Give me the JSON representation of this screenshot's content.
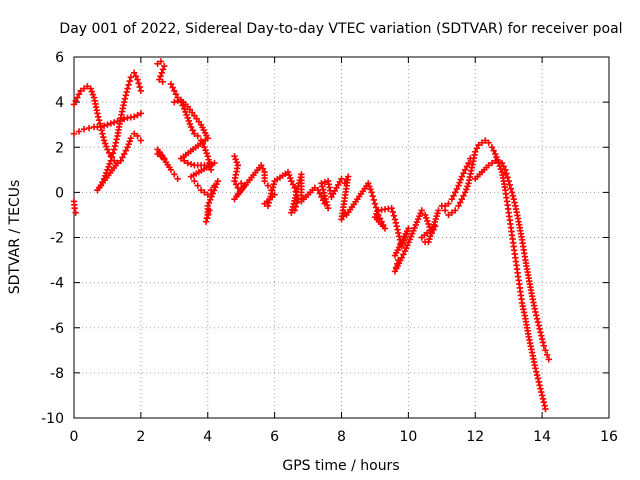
{
  "chart_data": {
    "type": "scatter",
    "title": "Day 001 of 2022, Sidereal Day-to-day VTEC variation (SDTVAR) for receiver poal",
    "xlabel": "GPS time / hours",
    "ylabel": "SDTVAR / TECUs",
    "xlim": [
      0,
      16
    ],
    "ylim": [
      -10,
      6
    ],
    "xticks": [
      0,
      2,
      4,
      6,
      8,
      10,
      12,
      14,
      16
    ],
    "yticks": [
      -10,
      -8,
      -6,
      -4,
      -2,
      0,
      2,
      4,
      6
    ],
    "grid": true,
    "marker": "+",
    "color": "#ff0000",
    "series": [
      {
        "name": "SDTVAR",
        "points": [
          [
            0.0,
            -0.4
          ],
          [
            0.02,
            -0.7
          ],
          [
            0.05,
            -0.9
          ],
          [
            0.0,
            2.6
          ],
          [
            0.15,
            2.7
          ],
          [
            0.3,
            2.8
          ],
          [
            0.45,
            2.85
          ],
          [
            0.6,
            2.9
          ],
          [
            0.8,
            2.9
          ],
          [
            1.0,
            3.0
          ],
          [
            1.2,
            3.1
          ],
          [
            1.4,
            3.2
          ],
          [
            1.6,
            3.3
          ],
          [
            1.8,
            3.35
          ],
          [
            2.0,
            3.5
          ],
          [
            0.0,
            3.9
          ],
          [
            0.1,
            4.2
          ],
          [
            0.2,
            4.5
          ],
          [
            0.3,
            4.6
          ],
          [
            0.4,
            4.7
          ],
          [
            0.5,
            4.6
          ],
          [
            0.6,
            4.2
          ],
          [
            0.7,
            3.5
          ],
          [
            0.8,
            2.9
          ],
          [
            0.9,
            2.3
          ],
          [
            1.0,
            1.9
          ],
          [
            1.1,
            1.6
          ],
          [
            1.2,
            1.4
          ],
          [
            1.3,
            1.3
          ],
          [
            0.7,
            0.1
          ],
          [
            0.8,
            0.3
          ],
          [
            0.9,
            0.6
          ],
          [
            1.0,
            1.0
          ],
          [
            1.1,
            1.4
          ],
          [
            1.2,
            1.9
          ],
          [
            1.3,
            2.5
          ],
          [
            1.4,
            3.3
          ],
          [
            1.5,
            4.0
          ],
          [
            1.6,
            4.6
          ],
          [
            1.7,
            5.1
          ],
          [
            1.8,
            5.3
          ],
          [
            1.9,
            5.0
          ],
          [
            2.0,
            4.5
          ],
          [
            1.3,
            1.3
          ],
          [
            1.4,
            1.4
          ],
          [
            1.5,
            1.7
          ],
          [
            1.6,
            2.0
          ],
          [
            1.7,
            2.4
          ],
          [
            1.8,
            2.6
          ],
          [
            1.9,
            2.5
          ],
          [
            2.0,
            2.3
          ],
          [
            2.5,
            5.7
          ],
          [
            2.6,
            5.8
          ],
          [
            2.7,
            5.6
          ],
          [
            2.55,
            5.0
          ],
          [
            2.65,
            4.9
          ],
          [
            2.5,
            1.7
          ],
          [
            2.6,
            1.6
          ],
          [
            2.7,
            1.5
          ],
          [
            2.5,
            1.9
          ],
          [
            2.9,
            1.0
          ],
          [
            3.0,
            0.8
          ],
          [
            3.1,
            0.6
          ],
          [
            2.9,
            4.8
          ],
          [
            3.0,
            4.5
          ],
          [
            3.1,
            4.2
          ],
          [
            3.2,
            4.0
          ],
          [
            3.3,
            3.7
          ],
          [
            3.4,
            3.3
          ],
          [
            3.5,
            2.9
          ],
          [
            3.6,
            2.6
          ],
          [
            3.7,
            2.5
          ],
          [
            3.8,
            2.3
          ],
          [
            3.9,
            2.0
          ],
          [
            4.0,
            1.6
          ],
          [
            4.05,
            1.3
          ],
          [
            4.1,
            1.0
          ],
          [
            3.0,
            4.0
          ],
          [
            3.2,
            4.1
          ],
          [
            3.4,
            3.8
          ],
          [
            3.6,
            3.4
          ],
          [
            3.8,
            3.0
          ],
          [
            4.0,
            2.4
          ],
          [
            3.2,
            1.5
          ],
          [
            3.4,
            1.3
          ],
          [
            3.6,
            1.2
          ],
          [
            3.8,
            1.2
          ],
          [
            4.0,
            1.2
          ],
          [
            4.2,
            1.3
          ],
          [
            3.5,
            0.7
          ],
          [
            3.6,
            0.5
          ],
          [
            3.7,
            0.3
          ],
          [
            3.8,
            0.1
          ],
          [
            3.9,
            0.0
          ],
          [
            4.0,
            -0.1
          ],
          [
            4.1,
            0.1
          ],
          [
            4.2,
            0.3
          ],
          [
            4.3,
            0.5
          ],
          [
            4.0,
            -0.6
          ],
          [
            4.0,
            -1.0
          ],
          [
            3.95,
            -1.3
          ],
          [
            4.05,
            -0.8
          ],
          [
            4.8,
            1.6
          ],
          [
            4.9,
            1.2
          ],
          [
            4.8,
            0.5
          ],
          [
            4.9,
            0.2
          ],
          [
            5.0,
            0.4
          ],
          [
            5.1,
            0.3
          ],
          [
            4.8,
            -0.3
          ],
          [
            4.9,
            -0.1
          ],
          [
            5.6,
            1.2
          ],
          [
            5.7,
            0.9
          ],
          [
            5.7,
            0.5
          ],
          [
            5.8,
            0.3
          ],
          [
            5.9,
            0.1
          ],
          [
            6.0,
            -0.1
          ],
          [
            5.7,
            -0.5
          ],
          [
            5.8,
            -0.6
          ],
          [
            6.0,
            0.5
          ],
          [
            6.4,
            0.9
          ],
          [
            6.5,
            0.5
          ],
          [
            6.6,
            0.2
          ],
          [
            6.7,
            -0.3
          ],
          [
            6.6,
            -0.8
          ],
          [
            6.5,
            -0.9
          ],
          [
            6.8,
            0.8
          ],
          [
            6.8,
            -0.4
          ],
          [
            7.2,
            0.2
          ],
          [
            7.3,
            0.1
          ],
          [
            7.4,
            -0.2
          ],
          [
            7.5,
            -0.5
          ],
          [
            7.6,
            -0.7
          ],
          [
            7.4,
            0.4
          ],
          [
            7.6,
            0.5
          ],
          [
            7.7,
            -0.2
          ],
          [
            8.0,
            0.6
          ],
          [
            8.1,
            0.4
          ],
          [
            8.2,
            0.7
          ],
          [
            8.0,
            -1.2
          ],
          [
            8.1,
            -0.9
          ],
          [
            8.15,
            -1.0
          ],
          [
            8.8,
            0.4
          ],
          [
            8.9,
            0.0
          ],
          [
            9.0,
            -0.5
          ],
          [
            9.1,
            -1.0
          ],
          [
            9.2,
            -1.3
          ],
          [
            9.3,
            -1.6
          ],
          [
            9.0,
            -1.1
          ],
          [
            9.1,
            -0.8
          ],
          [
            9.5,
            -0.7
          ],
          [
            9.6,
            -1.2
          ],
          [
            9.7,
            -1.8
          ],
          [
            9.8,
            -2.4
          ],
          [
            9.9,
            -2.0
          ],
          [
            10.0,
            -1.6
          ],
          [
            9.6,
            -2.8
          ],
          [
            9.7,
            -3.0
          ],
          [
            9.6,
            -3.5
          ],
          [
            9.8,
            -2.9
          ],
          [
            9.9,
            -2.6
          ],
          [
            10.4,
            -0.8
          ],
          [
            10.5,
            -1.0
          ],
          [
            10.6,
            -1.4
          ],
          [
            10.7,
            -1.8
          ],
          [
            10.8,
            -1.5
          ],
          [
            10.4,
            -2.0
          ],
          [
            10.5,
            -2.2
          ],
          [
            10.6,
            -2.2
          ],
          [
            10.9,
            -0.8
          ],
          [
            11.0,
            -0.6
          ],
          [
            11.1,
            -0.6
          ],
          [
            11.2,
            -0.5
          ],
          [
            11.3,
            -0.3
          ],
          [
            11.4,
            0.0
          ],
          [
            11.5,
            0.3
          ],
          [
            11.6,
            0.7
          ],
          [
            11.7,
            1.0
          ],
          [
            11.8,
            1.3
          ],
          [
            11.85,
            1.5
          ],
          [
            11.1,
            -0.8
          ],
          [
            11.2,
            -1.0
          ],
          [
            11.3,
            -0.9
          ],
          [
            11.4,
            -0.8
          ],
          [
            11.5,
            -0.6
          ],
          [
            11.6,
            -0.3
          ],
          [
            11.7,
            0.0
          ],
          [
            11.8,
            0.4
          ],
          [
            12.0,
            1.8
          ],
          [
            12.1,
            2.1
          ],
          [
            12.2,
            2.2
          ],
          [
            12.3,
            2.3
          ],
          [
            12.4,
            2.2
          ],
          [
            12.5,
            2.0
          ],
          [
            12.6,
            1.7
          ],
          [
            12.7,
            1.3
          ],
          [
            12.8,
            0.9
          ],
          [
            12.85,
            0.5
          ],
          [
            12.9,
            0.1
          ],
          [
            12.95,
            -0.4
          ],
          [
            13.0,
            -0.9
          ],
          [
            13.05,
            -1.4
          ],
          [
            13.1,
            -1.9
          ],
          [
            13.15,
            -2.4
          ],
          [
            13.2,
            -2.9
          ],
          [
            13.25,
            -3.4
          ],
          [
            13.3,
            -3.9
          ],
          [
            13.35,
            -4.4
          ],
          [
            13.4,
            -4.9
          ],
          [
            13.5,
            -5.6
          ],
          [
            13.6,
            -6.4
          ],
          [
            13.7,
            -7.1
          ],
          [
            13.8,
            -7.8
          ],
          [
            13.9,
            -8.4
          ],
          [
            14.0,
            -9.0
          ],
          [
            14.1,
            -9.6
          ],
          [
            12.0,
            0.6
          ],
          [
            12.2,
            0.9
          ],
          [
            12.4,
            1.2
          ],
          [
            12.6,
            1.4
          ],
          [
            12.8,
            1.3
          ],
          [
            12.9,
            1.0
          ],
          [
            13.0,
            0.5
          ],
          [
            13.1,
            0.0
          ],
          [
            13.2,
            -0.6
          ],
          [
            13.3,
            -1.3
          ],
          [
            13.4,
            -2.1
          ],
          [
            13.5,
            -3.0
          ],
          [
            13.6,
            -3.8
          ],
          [
            13.7,
            -4.6
          ],
          [
            13.8,
            -5.3
          ],
          [
            13.9,
            -5.9
          ],
          [
            14.0,
            -6.5
          ],
          [
            14.05,
            -6.8
          ],
          [
            14.1,
            -7.0
          ],
          [
            14.15,
            -7.2
          ],
          [
            14.2,
            -7.4
          ]
        ]
      }
    ]
  }
}
